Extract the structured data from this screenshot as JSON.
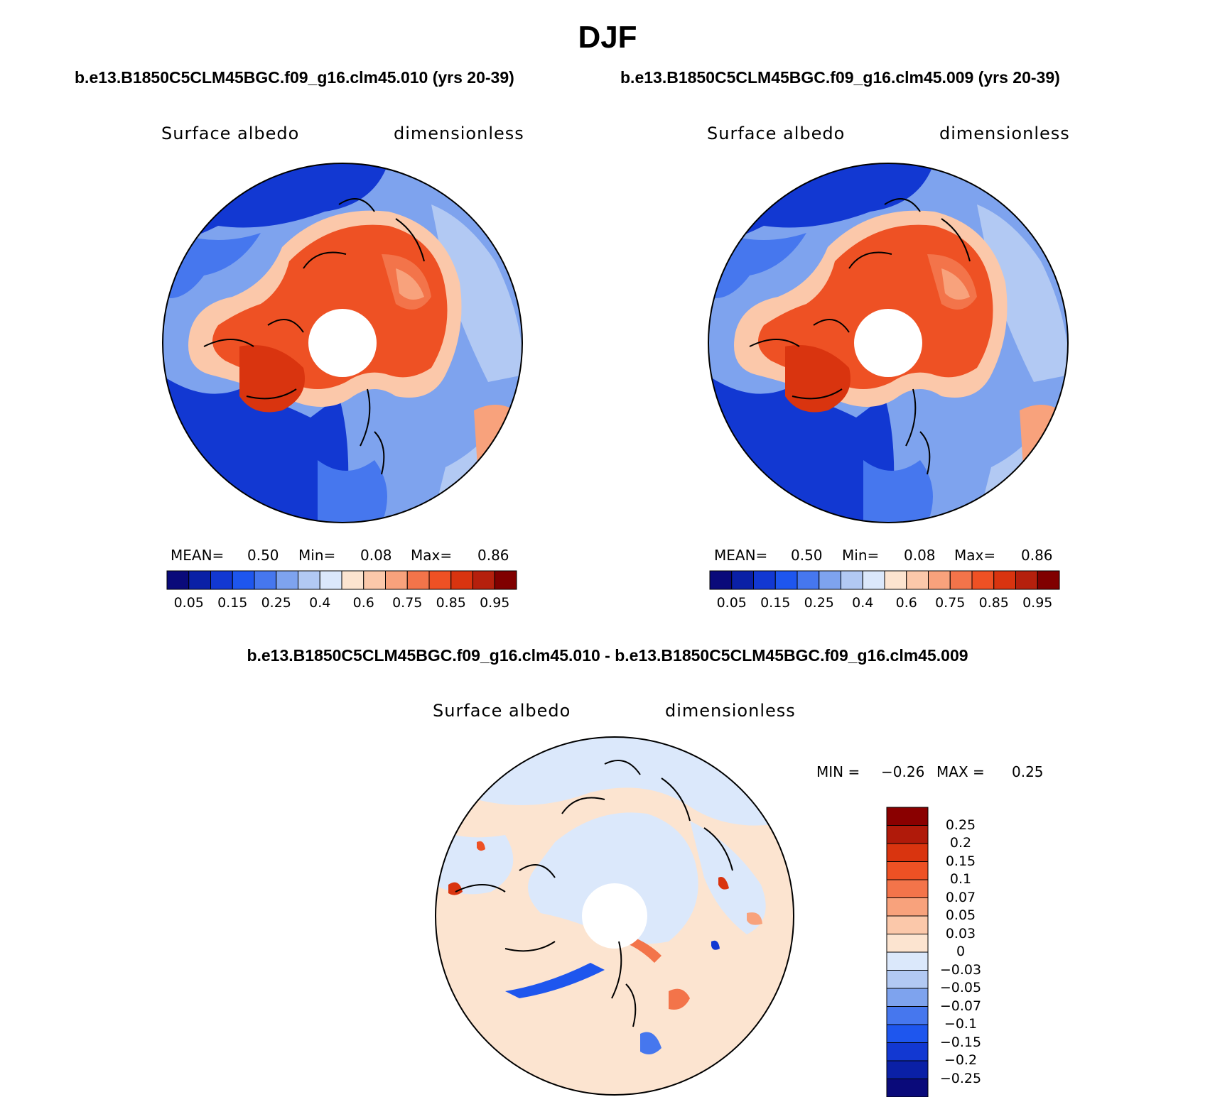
{
  "title": "DJF",
  "case_titles": [
    "b.e13.B1850C5CLM45BGC.f09_g16.clm45.010 (yrs 20-39)",
    "b.e13.B1850C5CLM45BGC.f09_g16.clm45.009 (yrs 20-39)"
  ],
  "diff_title": "b.e13.B1850C5CLM45BGC.f09_g16.clm45.010 - b.e13.B1850C5CLM45BGC.f09_g16.clm45.009",
  "panels": [
    {
      "variable": "Surface albedo",
      "units": "dimensionless",
      "stats": {
        "mean_label": "MEAN=",
        "mean": "0.50",
        "min_label": "Min=",
        "min": "0.08",
        "max_label": "Max=",
        "max": "0.86"
      }
    },
    {
      "variable": "Surface albedo",
      "units": "dimensionless",
      "stats": {
        "mean_label": "MEAN=",
        "mean": "0.50",
        "min_label": "Min=",
        "min": "0.08",
        "max_label": "Max=",
        "max": "0.86"
      }
    }
  ],
  "diff_panel": {
    "variable": "Surface albedo",
    "units": "dimensionless",
    "stats": {
      "min_label": "MIN =",
      "min": "−0.26",
      "max_label": "MAX =",
      "max": "0.25"
    }
  },
  "colorbar_abs": {
    "colors": [
      "#0a0a7a",
      "#0a20a6",
      "#1238d2",
      "#1e56ee",
      "#4677ee",
      "#7ea3ee",
      "#b2c9f3",
      "#dbe8fb",
      "#fce4d0",
      "#fbc8aa",
      "#f8a27c",
      "#f3744a",
      "#ee5124",
      "#d9340f",
      "#b5200d",
      "#800000"
    ],
    "tick_labels": [
      "0.05",
      "0.15",
      "0.25",
      "0.4",
      "0.6",
      "0.75",
      "0.85",
      "0.95"
    ]
  },
  "colorbar_diff": {
    "colors_top_to_bottom": [
      "#8a0000",
      "#b01a0a",
      "#d9340f",
      "#ee5124",
      "#f3744a",
      "#f8a27c",
      "#fbc8aa",
      "#fce4d0",
      "#dbe8fb",
      "#b2c9f3",
      "#7ea3ee",
      "#4677ee",
      "#1e56ee",
      "#1238d2",
      "#0a20a6",
      "#0a0a7a"
    ],
    "tick_labels": [
      "0.25",
      "0.2",
      "0.15",
      "0.1",
      "0.07",
      "0.05",
      "0.03",
      "0",
      "−0.03",
      "−0.05",
      "−0.07",
      "−0.1",
      "−0.15",
      "−0.2",
      "−0.25"
    ]
  }
}
